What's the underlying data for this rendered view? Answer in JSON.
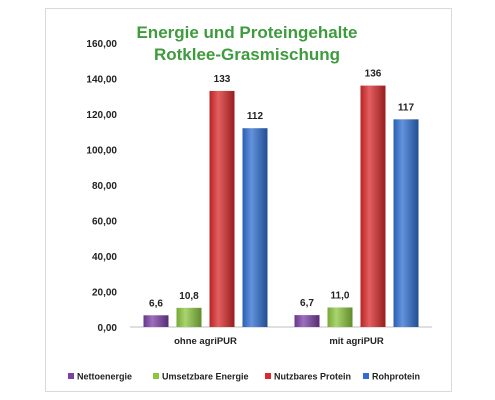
{
  "chart_data": {
    "type": "bar",
    "title": "Energie und Proteingehalte",
    "subtitle": "Rotklee-Grasmischung",
    "categories": [
      "ohne agriPUR",
      "mit agriPUR"
    ],
    "series": [
      {
        "name": "Nettoenergie",
        "values": [
          6.6,
          6.7
        ],
        "labels": [
          "6,6",
          "6,7"
        ],
        "color": "#7b3fa6"
      },
      {
        "name": "Umsetzbare Energie",
        "values": [
          10.8,
          11.0
        ],
        "labels": [
          "10,8",
          "11,0"
        ],
        "color": "#8cc63f"
      },
      {
        "name": "Nutzbares Protein",
        "values": [
          133,
          136
        ],
        "labels": [
          "133",
          "136"
        ],
        "color": "#d9292b"
      },
      {
        "name": "Rohprotein",
        "values": [
          112,
          117
        ],
        "labels": [
          "112",
          "117"
        ],
        "color": "#2f6fd1"
      }
    ],
    "ylim": [
      0,
      160
    ],
    "yticks": [
      0,
      20,
      40,
      60,
      80,
      100,
      120,
      140,
      160
    ],
    "ytick_labels": [
      "0,00",
      "20,00",
      "40,00",
      "60,00",
      "80,00",
      "100,00",
      "120,00",
      "140,00",
      "160,00"
    ],
    "grid": false,
    "legend_position": "bottom"
  }
}
